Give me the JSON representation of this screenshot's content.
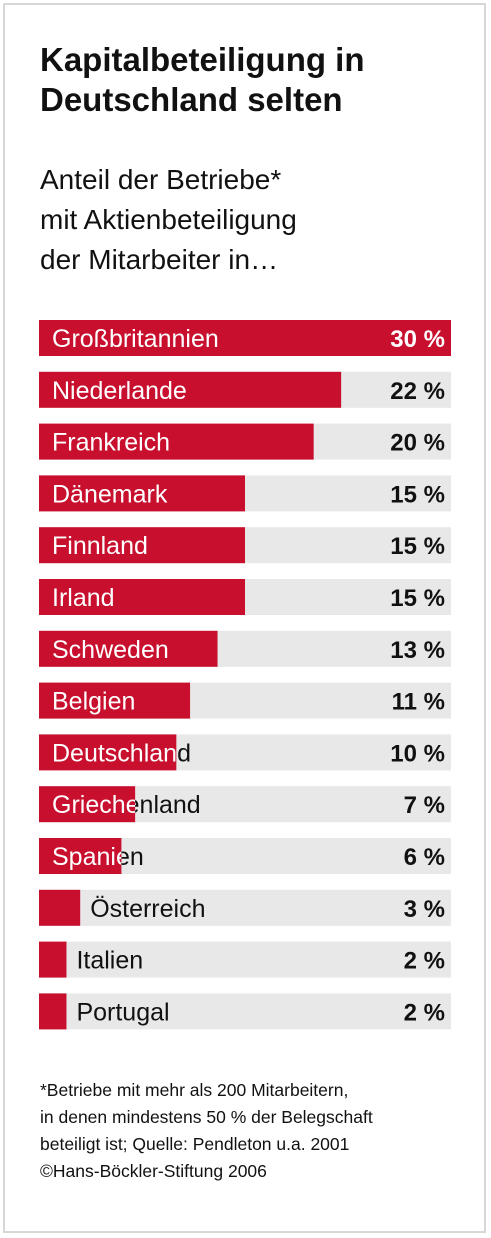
{
  "header": {
    "title_lines": [
      "Kapitalbeteiligung in",
      "Deutschland selten"
    ],
    "subtitle_lines": [
      "Anteil der Betriebe*",
      "mit Aktienbeteiligung",
      "der Mitarbeiter in…"
    ]
  },
  "chart_data": {
    "type": "bar",
    "orientation": "horizontal",
    "title": "Kapitalbeteiligung in Deutschland selten",
    "subtitle": "Anteil der Betriebe* mit Aktienbeteiligung der Mitarbeiter in…",
    "categories": [
      "Großbritannien",
      "Niederlande",
      "Frankreich",
      "Dänemark",
      "Finnland",
      "Irland",
      "Schweden",
      "Belgien",
      "Deutschland",
      "Griechenland",
      "Spanien",
      "Österreich",
      "Italien",
      "Portugal"
    ],
    "values": [
      30,
      22,
      20,
      15,
      15,
      15,
      13,
      11,
      10,
      7,
      6,
      3,
      2,
      2
    ],
    "value_labels": [
      "30 %",
      "22 %",
      "20 %",
      "15 %",
      "15 %",
      "15 %",
      "13 %",
      "11 %",
      "10 %",
      "7 %",
      "6 %",
      "3 %",
      "2 %",
      "2 %"
    ],
    "unit": "%",
    "xlim": [
      0,
      30
    ],
    "bar_color": "#c8102e",
    "track_color": "#e8e8e8",
    "label_on_bar_color": "#ffffff",
    "label_off_bar_color": "#111111"
  },
  "footnote": {
    "lines": [
      "*Betriebe mit mehr als 200 Mitarbeitern,",
      "in denen mindestens 50 % der Belegschaft",
      "beteiligt ist; Quelle: Pendleton u.a. 2001",
      "©Hans-Böckler-Stiftung 2006"
    ]
  }
}
